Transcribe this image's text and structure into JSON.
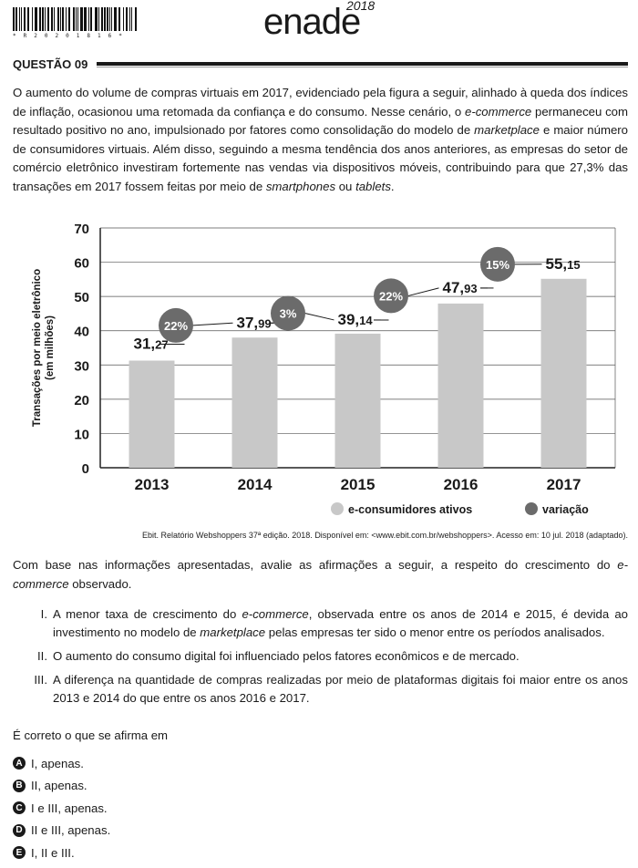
{
  "header": {
    "barcode_number": "* R 2 0 2 0 1 8 1 6 *",
    "logo": "enade",
    "year": "2018"
  },
  "question": {
    "label": "QUESTÃO 09",
    "intro": [
      {
        "t": "O aumento do volume de compras virtuais em 2017, evidenciado pela figura a seguir, alinhado à queda dos índices de inflação, ocasionou uma retomada da confiança e do consumo. Nesse cenário, o "
      },
      {
        "t": "e-commerce",
        "i": true
      },
      {
        "t": " permaneceu com resultado positivo no ano, impulsionado por fatores como consolidação do modelo de "
      },
      {
        "t": "marketplace",
        "i": true
      },
      {
        "t": " e maior número de consumidores virtuais. Além disso, seguindo a mesma tendência dos anos anteriores, as empresas do setor de comércio eletrônico investiram fortemente nas vendas via dispositivos móveis, contribuindo para que 27,3% das transações em 2017 fossem feitas por meio de "
      },
      {
        "t": "smartphones",
        "i": true
      },
      {
        "t": " ou "
      },
      {
        "t": "tablets",
        "i": true
      },
      {
        "t": "."
      }
    ],
    "source": "Ebit. Relatório Webshoppers 37ª edição. 2018. Disponível em: <www.ebit.com.br/webshoppers>. Acesso em: 10 jul. 2018 (adaptado).",
    "prompt": [
      {
        "t": "Com base nas informações apresentadas, avalie as afirmações a seguir, a respeito do crescimento do "
      },
      {
        "t": "e-commerce",
        "i": true
      },
      {
        "t": " observado."
      }
    ],
    "statements": [
      {
        "num": "I.",
        "parts": [
          {
            "t": "A menor taxa de crescimento do "
          },
          {
            "t": "e-commerce",
            "i": true
          },
          {
            "t": ", observada entre os anos de 2014 e 2015, é devida ao investimento no modelo de "
          },
          {
            "t": "marketplace",
            "i": true
          },
          {
            "t": " pelas empresas ter sido o menor entre os períodos analisados."
          }
        ]
      },
      {
        "num": "II.",
        "parts": [
          {
            "t": "O aumento do consumo digital foi influenciado pelos fatores econômicos e de mercado."
          }
        ]
      },
      {
        "num": "III.",
        "parts": [
          {
            "t": "A diferença na quantidade de compras realizadas por meio de plataformas digitais foi maior entre os anos 2013 e 2014 do que entre os anos 2016 e 2017."
          }
        ]
      }
    ],
    "ask": "É correto o que se afirma em",
    "options": [
      {
        "letter": "A",
        "text": "I, apenas."
      },
      {
        "letter": "B",
        "text": "II, apenas."
      },
      {
        "letter": "C",
        "text": "I e III, apenas."
      },
      {
        "letter": "D",
        "text": "II e III, apenas."
      },
      {
        "letter": "E",
        "text": "I, II e III."
      }
    ]
  },
  "chart_data": {
    "type": "bar",
    "categories": [
      "2013",
      "2014",
      "2015",
      "2016",
      "2017"
    ],
    "series": [
      {
        "name": "e-consumidores ativos",
        "values": [
          31.27,
          37.99,
          39.14,
          47.93,
          55.15
        ],
        "color": "#c8c8c8"
      }
    ],
    "value_labels": [
      {
        "int": "31,",
        "dec": "27"
      },
      {
        "int": "37,",
        "dec": "99"
      },
      {
        "int": "39,",
        "dec": "14"
      },
      {
        "int": "47,",
        "dec": "93"
      },
      {
        "int": "55,",
        "dec": "15"
      }
    ],
    "variation": {
      "name": "variação",
      "labels": [
        "22%",
        "3%",
        "22%",
        "15%"
      ],
      "color": "#6b6b6b"
    },
    "ylabel": "Transações por meio eletrônico",
    "ylabel2": "(em milhões)",
    "ylim": [
      0,
      70
    ],
    "yticks": [
      0,
      10,
      20,
      30,
      40,
      50,
      60,
      70
    ],
    "grid": true,
    "legend_position": "bottom-right"
  }
}
